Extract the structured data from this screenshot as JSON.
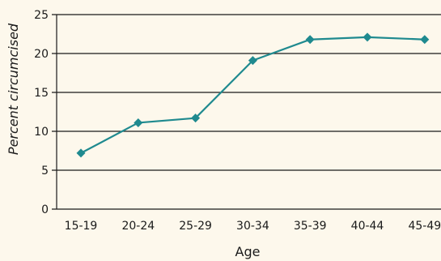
{
  "chart_data": {
    "type": "line",
    "title": "",
    "xlabel": "Age",
    "ylabel": "Percent circumcised",
    "categories": [
      "15-19",
      "20-24",
      "25-29",
      "30-34",
      "35-39",
      "40-44",
      "45-49"
    ],
    "values": [
      7.2,
      11.1,
      11.7,
      19.1,
      21.8,
      22.1,
      21.8
    ],
    "ylim": [
      0,
      25
    ],
    "yticks": [
      0,
      5,
      10,
      15,
      20,
      25
    ],
    "grid": "horizontal",
    "legend": "none",
    "colors": {
      "line": "#1f8a8f",
      "marker": "#1f8a8f",
      "gridline": "#1a1a1a",
      "background": "#fdf8ec"
    }
  }
}
